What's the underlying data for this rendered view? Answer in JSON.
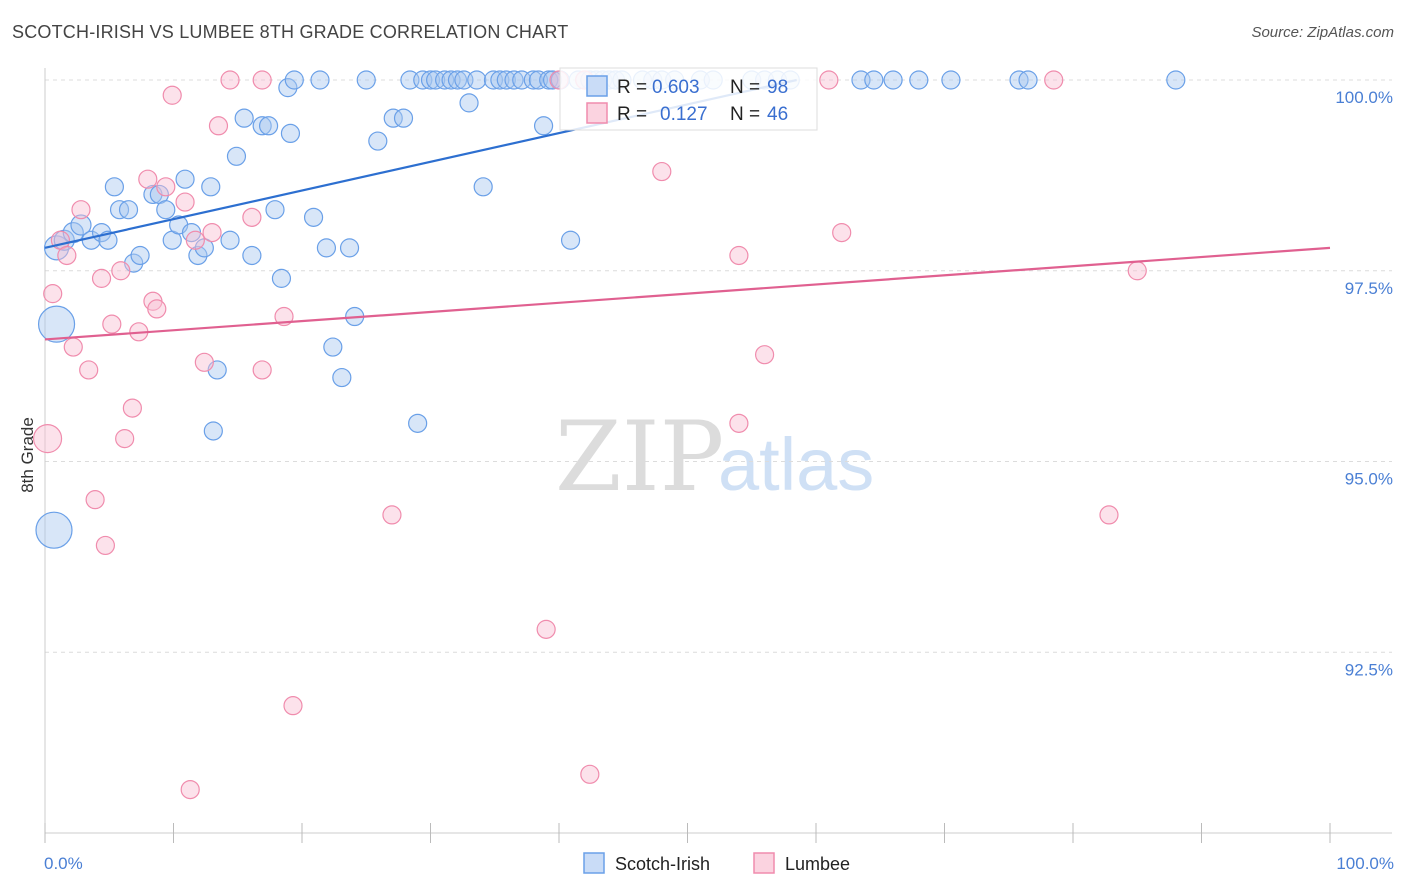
{
  "title": "SCOTCH-IRISH VS LUMBEE 8TH GRADE CORRELATION CHART",
  "source": "Source: ZipAtlas.com",
  "watermark": {
    "zip": "ZIP",
    "atlas": "atlas"
  },
  "legend_top": [
    {
      "r_label": "R =",
      "r_value": "0.603",
      "n_label": "N =",
      "n_value": "98"
    },
    {
      "r_label": "R =",
      "r_value": "0.127",
      "n_label": "N =",
      "n_value": "46"
    }
  ],
  "chart_data": {
    "type": "scatter",
    "title": "SCOTCH-IRISH VS LUMBEE 8TH GRADE CORRELATION CHART",
    "xlabel": "",
    "ylabel": "8th Grade",
    "xlim": [
      0,
      100
    ],
    "ylim": [
      90.2,
      100.2
    ],
    "x_tick_labels": [
      "0.0%",
      "100.0%"
    ],
    "y_ticks": [
      92.5,
      95.0,
      97.5,
      100.0
    ],
    "y_tick_labels": [
      "92.5%",
      "95.0%",
      "97.5%",
      "100.0%"
    ],
    "grid": true,
    "legend_position": "top-center",
    "colors": {
      "Scotch-Irish": "#6aa0e8",
      "Lumbee": "#f08cad",
      "Scotch-Irish-line": "#2d6fd0",
      "Lumbee-line": "#e06090"
    },
    "series": [
      {
        "name": "Scotch-Irish",
        "R": 0.603,
        "N": 98,
        "trend": [
          [
            0,
            97.8
          ],
          [
            58.5,
            100.0
          ]
        ],
        "points": [
          [
            0.9,
            97.8,
            12
          ],
          [
            0.9,
            96.8,
            18
          ],
          [
            0.7,
            94.1,
            18
          ],
          [
            1.5,
            97.9,
            10
          ],
          [
            2.2,
            98.0,
            10
          ],
          [
            2.8,
            98.1,
            10
          ],
          [
            3.6,
            97.9,
            9
          ],
          [
            4.4,
            98.0,
            9
          ],
          [
            4.9,
            97.9,
            9
          ],
          [
            5.4,
            98.6,
            9
          ],
          [
            5.8,
            98.3,
            9
          ],
          [
            6.5,
            98.3,
            9
          ],
          [
            6.9,
            97.6,
            9
          ],
          [
            7.4,
            97.7,
            9
          ],
          [
            8.4,
            98.5,
            9
          ],
          [
            8.9,
            98.5,
            9
          ],
          [
            9.4,
            98.3,
            9
          ],
          [
            9.9,
            97.9,
            9
          ],
          [
            10.4,
            98.1,
            9
          ],
          [
            10.9,
            98.7,
            9
          ],
          [
            11.4,
            98.0,
            9
          ],
          [
            11.9,
            97.7,
            9
          ],
          [
            12.4,
            97.8,
            9
          ],
          [
            12.9,
            98.6,
            9
          ],
          [
            13.4,
            96.2,
            9
          ],
          [
            13.1,
            95.4,
            9
          ],
          [
            14.4,
            97.9,
            9
          ],
          [
            14.9,
            99.0,
            9
          ],
          [
            15.5,
            99.5,
            9
          ],
          [
            16.1,
            97.7,
            9
          ],
          [
            16.9,
            99.4,
            9
          ],
          [
            17.4,
            99.4,
            9
          ],
          [
            17.9,
            98.3,
            9
          ],
          [
            18.4,
            97.4,
            9
          ],
          [
            18.9,
            99.9,
            9
          ],
          [
            19.4,
            100.0,
            9
          ],
          [
            19.1,
            99.3,
            9
          ],
          [
            20.9,
            98.2,
            9
          ],
          [
            21.4,
            100.0,
            9
          ],
          [
            21.9,
            97.8,
            9
          ],
          [
            22.4,
            96.5,
            9
          ],
          [
            23.1,
            96.1,
            9
          ],
          [
            23.7,
            97.8,
            9
          ],
          [
            24.1,
            96.9,
            9
          ],
          [
            25.0,
            100.0,
            9
          ],
          [
            25.9,
            99.2,
            9
          ],
          [
            27.1,
            99.5,
            9
          ],
          [
            27.9,
            99.5,
            9
          ],
          [
            28.4,
            100.0,
            9
          ],
          [
            29.0,
            95.5,
            9
          ],
          [
            29.4,
            100.0,
            9
          ],
          [
            30.0,
            100.0,
            9
          ],
          [
            30.4,
            100.0,
            9
          ],
          [
            31.1,
            100.0,
            9
          ],
          [
            31.6,
            100.0,
            9
          ],
          [
            32.1,
            100.0,
            9
          ],
          [
            32.6,
            100.0,
            9
          ],
          [
            33.0,
            99.7,
            9
          ],
          [
            33.6,
            100.0,
            9
          ],
          [
            34.1,
            98.6,
            9
          ],
          [
            34.9,
            100.0,
            9
          ],
          [
            35.4,
            100.0,
            9
          ],
          [
            35.9,
            100.0,
            9
          ],
          [
            36.5,
            100.0,
            9
          ],
          [
            37.1,
            100.0,
            9
          ],
          [
            38.0,
            100.0,
            9
          ],
          [
            38.4,
            100.0,
            9
          ],
          [
            39.2,
            100.0,
            9
          ],
          [
            39.5,
            100.0,
            9
          ],
          [
            40.1,
            100.0,
            9
          ],
          [
            40.9,
            97.9,
            9
          ],
          [
            41.5,
            100.0,
            9
          ],
          [
            42.0,
            100.0,
            9
          ],
          [
            42.4,
            100.0,
            9
          ],
          [
            42.9,
            100.0,
            9
          ],
          [
            43.4,
            100.0,
            9
          ],
          [
            43.9,
            100.0,
            9
          ],
          [
            44.4,
            100.0,
            9
          ],
          [
            44.9,
            100.0,
            9
          ],
          [
            46.5,
            100.0,
            9
          ],
          [
            47.3,
            100.0,
            9
          ],
          [
            48.0,
            100.0,
            9
          ],
          [
            49.0,
            100.0,
            9
          ],
          [
            51.0,
            100.0,
            9
          ],
          [
            52.0,
            100.0,
            9
          ],
          [
            55.0,
            100.0,
            9
          ],
          [
            56.0,
            100.0,
            9
          ],
          [
            57.0,
            100.0,
            9
          ],
          [
            58.0,
            100.0,
            9
          ],
          [
            63.5,
            100.0,
            9
          ],
          [
            64.5,
            100.0,
            9
          ],
          [
            66.0,
            100.0,
            9
          ],
          [
            68.0,
            100.0,
            9
          ],
          [
            70.5,
            100.0,
            9
          ],
          [
            75.8,
            100.0,
            9
          ],
          [
            76.5,
            100.0,
            9
          ],
          [
            88.0,
            100.0,
            9
          ],
          [
            38.8,
            99.4,
            9
          ]
        ]
      },
      {
        "name": "Lumbee",
        "R": 0.127,
        "N": 46,
        "trend": [
          [
            0,
            96.6
          ],
          [
            100,
            97.8
          ]
        ],
        "points": [
          [
            0.2,
            95.3,
            14
          ],
          [
            0.6,
            97.2,
            9
          ],
          [
            1.2,
            97.9,
            9
          ],
          [
            1.7,
            97.7,
            9
          ],
          [
            2.2,
            96.5,
            9
          ],
          [
            2.8,
            98.3,
            9
          ],
          [
            3.4,
            96.2,
            9
          ],
          [
            3.9,
            94.5,
            9
          ],
          [
            4.4,
            97.4,
            9
          ],
          [
            4.7,
            93.9,
            9
          ],
          [
            5.2,
            96.8,
            9
          ],
          [
            5.9,
            97.5,
            9
          ],
          [
            6.2,
            95.3,
            9
          ],
          [
            6.8,
            95.7,
            9
          ],
          [
            7.3,
            96.7,
            9
          ],
          [
            8.0,
            98.7,
            9
          ],
          [
            8.4,
            97.1,
            9
          ],
          [
            8.7,
            97.0,
            9
          ],
          [
            9.4,
            98.6,
            9
          ],
          [
            9.9,
            99.8,
            9
          ],
          [
            10.9,
            98.4,
            9
          ],
          [
            11.3,
            90.7,
            9
          ],
          [
            11.7,
            97.9,
            9
          ],
          [
            12.4,
            96.3,
            9
          ],
          [
            13.0,
            98.0,
            9
          ],
          [
            13.5,
            99.4,
            9
          ],
          [
            14.4,
            100.0,
            9
          ],
          [
            16.1,
            98.2,
            9
          ],
          [
            16.9,
            100.0,
            9
          ],
          [
            16.9,
            96.2,
            9
          ],
          [
            18.6,
            96.9,
            9
          ],
          [
            19.3,
            91.8,
            9
          ],
          [
            27.0,
            94.3,
            9
          ],
          [
            39.0,
            92.8,
            9
          ],
          [
            40.0,
            100.0,
            9
          ],
          [
            42.0,
            100.0,
            9
          ],
          [
            42.4,
            90.9,
            9
          ],
          [
            48.0,
            98.8,
            9
          ],
          [
            54.0,
            97.7,
            9
          ],
          [
            54.0,
            95.5,
            9
          ],
          [
            56.0,
            96.4,
            9
          ],
          [
            61.0,
            100.0,
            9
          ],
          [
            62.0,
            98.0,
            9
          ],
          [
            78.5,
            100.0,
            9
          ],
          [
            82.8,
            94.3,
            9
          ],
          [
            85.0,
            97.5,
            9
          ]
        ]
      }
    ]
  },
  "bottom_legend": [
    "Scotch-Irish",
    "Lumbee"
  ]
}
